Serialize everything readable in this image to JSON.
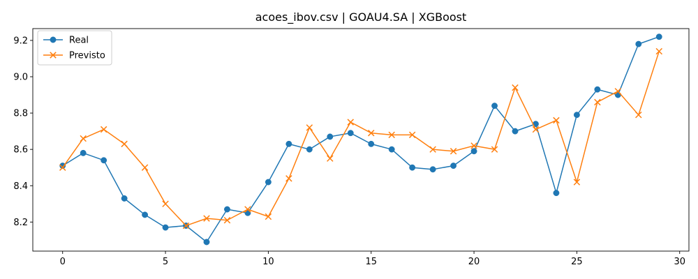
{
  "chart_data": {
    "type": "line",
    "title": "acoes_ibov.csv | GOAU4.SA | XGBoost",
    "xlabel": "",
    "ylabel": "",
    "x": [
      0,
      1,
      2,
      3,
      4,
      5,
      6,
      7,
      8,
      9,
      10,
      11,
      12,
      13,
      14,
      15,
      16,
      17,
      18,
      19,
      20,
      21,
      22,
      23,
      24,
      25,
      26,
      27,
      28,
      29
    ],
    "xlim": [
      -1.45,
      30.45
    ],
    "ylim": [
      8.04,
      9.265
    ],
    "xticks": [
      0,
      5,
      10,
      15,
      20,
      25,
      30
    ],
    "xtick_labels": [
      "0",
      "5",
      "10",
      "15",
      "20",
      "25",
      "30"
    ],
    "yticks": [
      8.2,
      8.4,
      8.6,
      8.8,
      9.0,
      9.2
    ],
    "ytick_labels": [
      "8.2",
      "8.4",
      "8.6",
      "8.8",
      "9.0",
      "9.2"
    ],
    "grid": false,
    "legend_position": "upper-left",
    "series": [
      {
        "name": "Real",
        "color": "#1f77b4",
        "marker": "circle",
        "values": [
          8.51,
          8.58,
          8.54,
          8.33,
          8.24,
          8.17,
          8.18,
          8.09,
          8.27,
          8.25,
          8.42,
          8.63,
          8.6,
          8.67,
          8.69,
          8.63,
          8.6,
          8.5,
          8.49,
          8.51,
          8.59,
          8.84,
          8.7,
          8.74,
          8.36,
          8.79,
          8.93,
          8.9,
          9.18,
          9.22
        ]
      },
      {
        "name": "Previsto",
        "color": "#ff7f0e",
        "marker": "x",
        "values": [
          8.5,
          8.66,
          8.71,
          8.63,
          8.5,
          8.3,
          8.18,
          8.22,
          8.21,
          8.27,
          8.23,
          8.44,
          8.72,
          8.55,
          8.75,
          8.69,
          8.68,
          8.68,
          8.6,
          8.59,
          8.62,
          8.6,
          8.94,
          8.71,
          8.76,
          8.42,
          8.86,
          8.92,
          8.79,
          9.14
        ]
      }
    ]
  }
}
